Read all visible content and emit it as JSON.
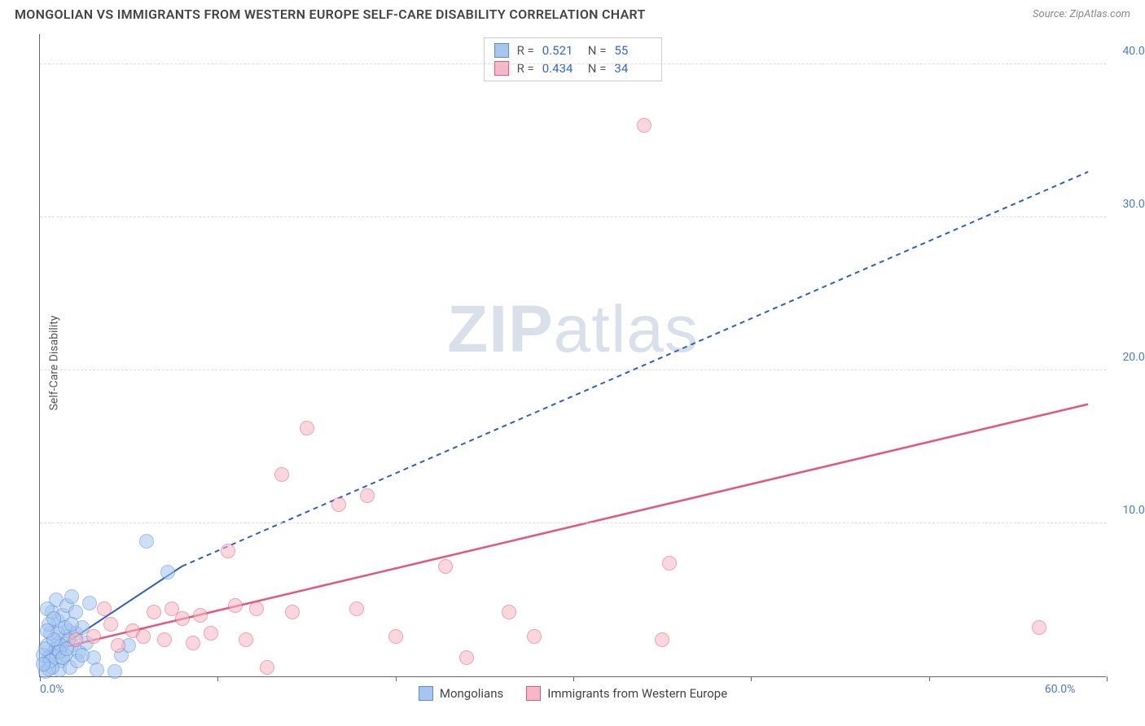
{
  "header": {
    "title": "MONGOLIAN VS IMMIGRANTS FROM WESTERN EUROPE SELF-CARE DISABILITY CORRELATION CHART",
    "source": "Source: ZipAtlas.com"
  },
  "ylabel": "Self-Care Disability",
  "watermark_part1": "ZIP",
  "watermark_part2": "atlas",
  "chart": {
    "type": "scatter",
    "xlim": [
      0,
      60
    ],
    "ylim": [
      0,
      42
    ],
    "y_ticks": [
      10,
      20,
      30,
      40
    ],
    "y_tick_labels": [
      "10.0%",
      "20.0%",
      "30.0%",
      "40.0%"
    ],
    "x_ticks": [
      0,
      10,
      20,
      30,
      40,
      50,
      60
    ],
    "x_tick_labels": [
      "0.0%",
      "",
      "",
      "",
      "",
      "",
      "60.0%"
    ],
    "background_color": "#ffffff",
    "grid_color": "#dddddd",
    "axis_color": "#666666",
    "point_radius": 9,
    "series": [
      {
        "name": "Mongolians",
        "fill": "#a6c6f0",
        "stroke": "#5a8cd6",
        "fill_opacity": 0.55,
        "points": [
          [
            0.3,
            0.8
          ],
          [
            0.5,
            1.2
          ],
          [
            0.8,
            1.6
          ],
          [
            1.0,
            2.2
          ],
          [
            1.2,
            1.0
          ],
          [
            1.4,
            2.6
          ],
          [
            1.6,
            3.0
          ],
          [
            1.0,
            3.6
          ],
          [
            0.7,
            4.2
          ],
          [
            1.8,
            2.0
          ],
          [
            2.0,
            2.8
          ],
          [
            2.2,
            1.6
          ],
          [
            0.4,
            2.0
          ],
          [
            0.6,
            2.8
          ],
          [
            1.3,
            4.0
          ],
          [
            0.9,
            5.0
          ],
          [
            1.5,
            4.6
          ],
          [
            1.8,
            5.2
          ],
          [
            2.4,
            3.2
          ],
          [
            2.6,
            2.2
          ],
          [
            3.0,
            1.2
          ],
          [
            3.2,
            0.4
          ],
          [
            1.1,
            0.4
          ],
          [
            0.3,
            0.3
          ],
          [
            1.7,
            0.6
          ],
          [
            2.1,
            1.0
          ],
          [
            0.2,
            1.4
          ],
          [
            1.4,
            1.4
          ],
          [
            4.2,
            0.3
          ],
          [
            4.6,
            1.4
          ],
          [
            5.0,
            2.0
          ],
          [
            0.4,
            4.4
          ],
          [
            2.8,
            4.8
          ],
          [
            6.0,
            8.8
          ],
          [
            7.2,
            6.8
          ],
          [
            0.7,
            0.6
          ],
          [
            0.9,
            1.8
          ],
          [
            1.6,
            2.4
          ],
          [
            2.0,
            4.2
          ],
          [
            0.5,
            3.4
          ],
          [
            1.2,
            2.0
          ],
          [
            0.3,
            1.8
          ],
          [
            1.0,
            2.8
          ],
          [
            0.6,
            1.0
          ],
          [
            1.4,
            3.2
          ],
          [
            0.8,
            2.4
          ],
          [
            1.1,
            1.6
          ],
          [
            1.8,
            3.4
          ],
          [
            0.5,
            0.5
          ],
          [
            2.4,
            1.4
          ],
          [
            0.2,
            0.8
          ],
          [
            1.3,
            1.2
          ],
          [
            0.8,
            3.8
          ],
          [
            1.5,
            1.8
          ],
          [
            0.4,
            3.0
          ]
        ],
        "trend_solid": [
          [
            0.2,
            1.2
          ],
          [
            8,
            7.2
          ]
        ],
        "trend_dashed": [
          [
            8,
            7.2
          ],
          [
            59,
            33.0
          ]
        ],
        "trend_color": "#2c5fc4",
        "trend_dash": "6,5",
        "trend_width": 2
      },
      {
        "name": "Immigrants from Western Europe",
        "fill": "#f6b8c6",
        "stroke": "#e4577a",
        "fill_opacity": 0.55,
        "points": [
          [
            2.0,
            2.4
          ],
          [
            3.0,
            2.6
          ],
          [
            3.6,
            4.4
          ],
          [
            4.4,
            2.0
          ],
          [
            5.2,
            3.0
          ],
          [
            5.8,
            2.6
          ],
          [
            6.4,
            4.2
          ],
          [
            7.0,
            2.4
          ],
          [
            7.4,
            4.4
          ],
          [
            8.0,
            3.8
          ],
          [
            8.6,
            2.2
          ],
          [
            9.0,
            4.0
          ],
          [
            9.6,
            2.8
          ],
          [
            10.6,
            8.2
          ],
          [
            11.0,
            4.6
          ],
          [
            11.6,
            2.4
          ],
          [
            12.2,
            4.4
          ],
          [
            12.8,
            0.6
          ],
          [
            13.6,
            13.2
          ],
          [
            14.2,
            4.2
          ],
          [
            15.0,
            16.2
          ],
          [
            16.8,
            11.2
          ],
          [
            17.8,
            4.4
          ],
          [
            18.4,
            11.8
          ],
          [
            20.0,
            2.6
          ],
          [
            22.8,
            7.2
          ],
          [
            24.0,
            1.2
          ],
          [
            26.4,
            4.2
          ],
          [
            27.8,
            2.6
          ],
          [
            34.0,
            36.0
          ],
          [
            35.4,
            7.4
          ],
          [
            35.0,
            2.4
          ],
          [
            56.2,
            3.2
          ],
          [
            4.0,
            3.4
          ]
        ],
        "trend_solid": [
          [
            0.2,
            1.6
          ],
          [
            59,
            17.8
          ]
        ],
        "trend_color": "#e4577a",
        "trend_width": 2.5
      }
    ]
  },
  "legend_top": [
    {
      "swatch_fill": "#a6c6f0",
      "swatch_stroke": "#5a8cd6",
      "r": "R =",
      "r_val": "0.521",
      "n": "N =",
      "n_val": "55"
    },
    {
      "swatch_fill": "#f6b8c6",
      "swatch_stroke": "#e4577a",
      "r": "R =",
      "r_val": "0.434",
      "n": "N =",
      "n_val": "34"
    }
  ],
  "legend_bottom": [
    {
      "swatch_fill": "#a6c6f0",
      "swatch_stroke": "#5a8cd6",
      "label": "Mongolians"
    },
    {
      "swatch_fill": "#f6b8c6",
      "swatch_stroke": "#e4577a",
      "label": "Immigrants from Western Europe"
    }
  ]
}
